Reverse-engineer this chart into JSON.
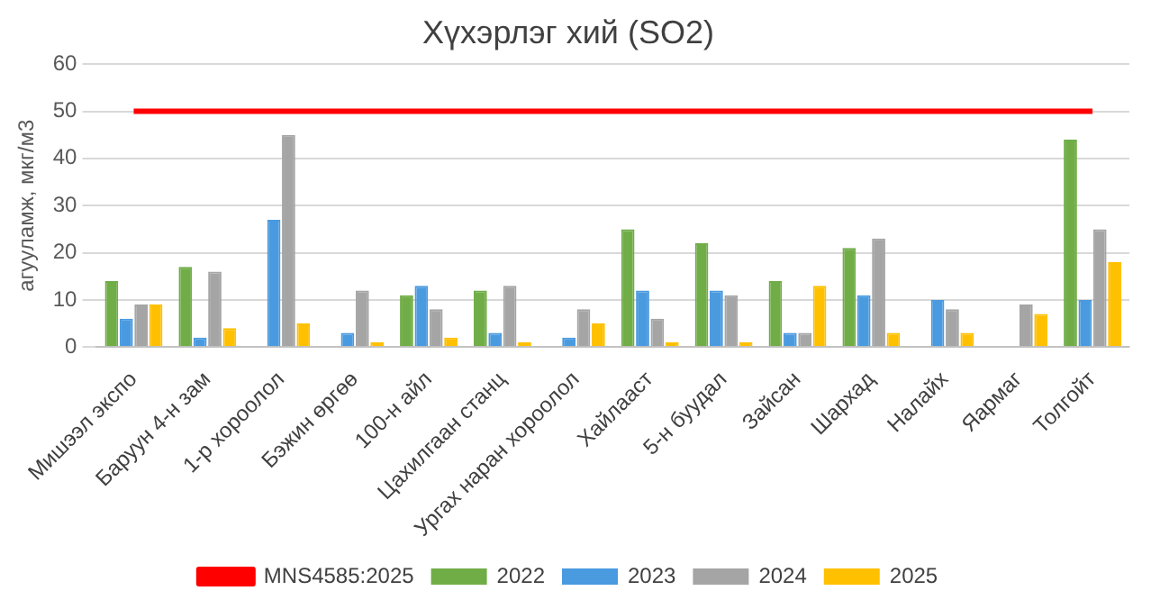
{
  "chart_data": {
    "type": "bar",
    "title": "Хүхэрлэг хий (SO2)",
    "ylabel": "агууламж, мкг/м3",
    "categories": [
      "Мишээл экспо",
      "Баруун 4-н зам",
      "1-р хороолол",
      "Бэжин өргөө",
      "100-н айл",
      "Цахилгаан станц",
      "Ургах наран хороолол",
      "Хайлааст",
      "5-н буудал",
      "Зайсан",
      "Шархад",
      "Налайх",
      "Яармаг",
      "Толгойт"
    ],
    "series": [
      {
        "name": "2022",
        "color": "#70ad47",
        "values": [
          14,
          17,
          null,
          null,
          11,
          12,
          null,
          25,
          22,
          14,
          21,
          null,
          null,
          44
        ]
      },
      {
        "name": "2023",
        "color": "#4a9ae0",
        "values": [
          6,
          2,
          27,
          3,
          13,
          3,
          2,
          12,
          12,
          3,
          11,
          10,
          null,
          10
        ]
      },
      {
        "name": "2024",
        "color": "#a5a5a5",
        "values": [
          9,
          16,
          45,
          12,
          8,
          13,
          8,
          6,
          11,
          3,
          23,
          8,
          9,
          25
        ]
      },
      {
        "name": "2025",
        "color": "#ffc000",
        "values": [
          9,
          4,
          5,
          1,
          2,
          1,
          5,
          1,
          1,
          13,
          3,
          3,
          7,
          18
        ]
      },
      {
        "name": "MNS4585:2025",
        "type": "line",
        "color": "#ff0000",
        "values": [
          50,
          50,
          50,
          50,
          50,
          50,
          50,
          50,
          50,
          50,
          50,
          50,
          50,
          50
        ]
      }
    ],
    "ylim": [
      0,
      60
    ],
    "yticks": [
      0,
      10,
      20,
      30,
      40,
      50,
      60
    ],
    "grid": "y",
    "legend": "bottom",
    "marker": "none"
  }
}
